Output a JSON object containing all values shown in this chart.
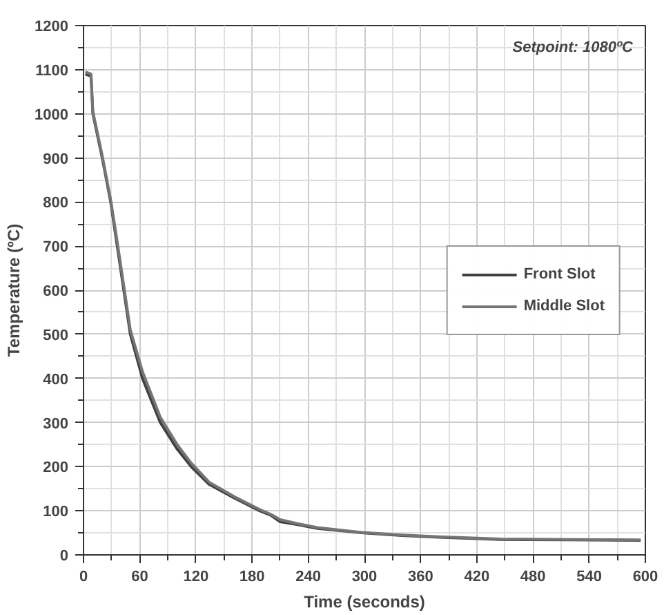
{
  "chart_data": {
    "type": "line",
    "xlabel": "Time (seconds)",
    "ylabel": "Temperature (ºC)",
    "annotations": [
      "Setpoint:  1080ºC"
    ],
    "xlim": [
      0,
      600
    ],
    "ylim": [
      0,
      1200
    ],
    "xticks": [
      0,
      60,
      120,
      180,
      240,
      300,
      360,
      420,
      480,
      540,
      600
    ],
    "yticks": [
      0,
      100,
      200,
      300,
      400,
      500,
      600,
      700,
      800,
      900,
      1000,
      1100,
      1200
    ],
    "grid": true,
    "legend": "right",
    "line_style": "solid",
    "series": [
      {
        "name": "Front Slot",
        "color": "#404040",
        "x": [
          2,
          8,
          10,
          20,
          29,
          36,
          43,
          50,
          63,
          82,
          100,
          115,
          134,
          160,
          188,
          200,
          210,
          230,
          250,
          275,
          297,
          340,
          380,
          445,
          520,
          595
        ],
        "values": [
          1090,
          1085,
          1000,
          900,
          800,
          700,
          600,
          500,
          400,
          300,
          240,
          200,
          160,
          130,
          100,
          90,
          75,
          68,
          60,
          55,
          50,
          44,
          40,
          35,
          34,
          33
        ]
      },
      {
        "name": "Middle Slot",
        "color": "#757575",
        "x": [
          2,
          8,
          10,
          20,
          29,
          36,
          43,
          50,
          63,
          82,
          100,
          115,
          134,
          160,
          188,
          200,
          210,
          230,
          250,
          275,
          297,
          340,
          380,
          445,
          520,
          595
        ],
        "values": [
          1095,
          1090,
          1005,
          905,
          805,
          710,
          610,
          510,
          415,
          312,
          250,
          208,
          165,
          133,
          103,
          92,
          80,
          70,
          62,
          56,
          51,
          45,
          41,
          36,
          35,
          34
        ]
      }
    ]
  }
}
